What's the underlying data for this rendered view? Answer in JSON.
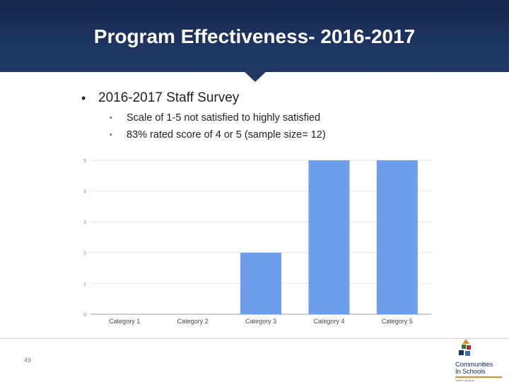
{
  "slide": {
    "title": "Program Effectiveness- 2016-2017",
    "bullet_main": "2016-2017 Staff Survey",
    "sub_bullets": [
      "Scale of 1-5 not satisfied to highly satisfied",
      "83% rated score of 4 or 5 (sample size= 12)"
    ],
    "page_number": "49"
  },
  "logo": {
    "line1": "Communities",
    "line2": "In Schools",
    "tagline": "North Carolina"
  },
  "colors": {
    "header": "#1d3360",
    "bar": "#6d9eeb",
    "accent_orange": "#e58a2a"
  },
  "chart_data": {
    "type": "bar",
    "categories": [
      "Category 1",
      "Category 2",
      "Category 3",
      "Category 4",
      "Category 5"
    ],
    "values": [
      0,
      0,
      2,
      5,
      5
    ],
    "title": "",
    "xlabel": "",
    "ylabel": "",
    "ylim": [
      0,
      5
    ],
    "yticks": [
      0,
      1,
      2,
      3,
      4,
      5
    ],
    "grid": true,
    "legend": "none"
  }
}
